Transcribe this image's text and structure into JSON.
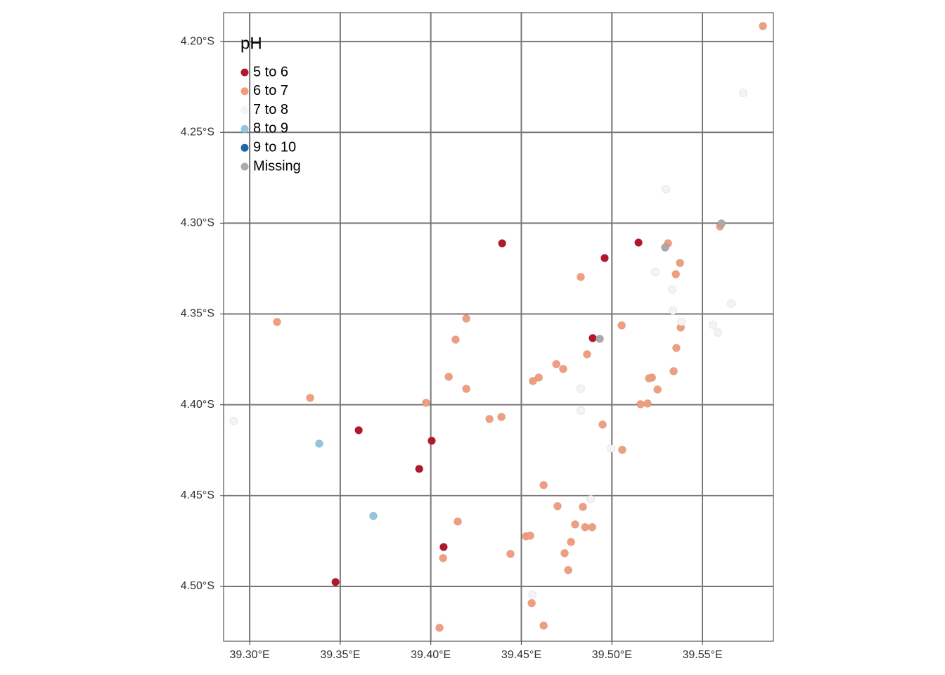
{
  "chart_data": {
    "type": "scatter",
    "legend_title": "pH",
    "grid": true,
    "legend_position": "top-left",
    "xlim": [
      39.2856,
      39.5892
    ],
    "ylim": [
      -4.5302,
      -4.1841
    ],
    "xticks": [
      {
        "value": 39.3,
        "label": "39.30°E"
      },
      {
        "value": 39.35,
        "label": "39.35°E"
      },
      {
        "value": 39.4,
        "label": "39.40°E"
      },
      {
        "value": 39.45,
        "label": "39.45°E"
      },
      {
        "value": 39.5,
        "label": "39.50°E"
      },
      {
        "value": 39.55,
        "label": "39.55°E"
      }
    ],
    "yticks": [
      {
        "value": -4.2,
        "label": "4.20°S"
      },
      {
        "value": -4.25,
        "label": "4.25°S"
      },
      {
        "value": -4.3,
        "label": "4.30°S"
      },
      {
        "value": -4.35,
        "label": "4.35°S"
      },
      {
        "value": -4.4,
        "label": "4.40°S"
      },
      {
        "value": -4.45,
        "label": "4.45°S"
      },
      {
        "value": -4.5,
        "label": "4.50°S"
      }
    ],
    "series": [
      {
        "name": "5 to 6",
        "color": "#b2182b",
        "x": [
          39.4394,
          39.496,
          39.5147,
          39.4894,
          39.3602,
          39.4005,
          39.3936,
          39.4071,
          39.3474
        ],
        "y": [
          -4.3111,
          -4.3192,
          -4.3107,
          -4.3633,
          -4.414,
          -4.4198,
          -4.4353,
          -4.4783,
          -4.4976
        ]
      },
      {
        "name": "6 to 7",
        "color": "#ef9f7e",
        "x": [
          39.5834,
          39.5597,
          39.531,
          39.5376,
          39.5353,
          39.4828,
          39.3151,
          39.5054,
          39.538,
          39.4196,
          39.4137,
          39.5356,
          39.4863,
          39.4693,
          39.4731,
          39.5341,
          39.4099,
          39.5221,
          39.5205,
          39.4596,
          39.4564,
          39.4196,
          39.5252,
          39.3334,
          39.3974,
          39.5158,
          39.5197,
          39.439,
          39.4324,
          39.4949,
          39.5057,
          39.4623,
          39.47,
          39.484,
          39.4149,
          39.4797,
          39.4852,
          39.4891,
          39.4526,
          39.4549,
          39.4774,
          39.4739,
          39.4068,
          39.444,
          39.4759,
          39.4557,
          39.4048,
          39.4623
        ],
        "y": [
          -4.1915,
          -4.3018,
          -4.3111,
          -4.3219,
          -4.3281,
          -4.3296,
          -4.3544,
          -4.3563,
          -4.3575,
          -4.3525,
          -4.3641,
          -4.3687,
          -4.3722,
          -4.3776,
          -4.3803,
          -4.3815,
          -4.3846,
          -4.385,
          -4.3854,
          -4.385,
          -4.3869,
          -4.3912,
          -4.3916,
          -4.3962,
          -4.3989,
          -4.3997,
          -4.3993,
          -4.4067,
          -4.4078,
          -4.4109,
          -4.4248,
          -4.4442,
          -4.4558,
          -4.4562,
          -4.4643,
          -4.4659,
          -4.4674,
          -4.4674,
          -4.4724,
          -4.4721,
          -4.4755,
          -4.4817,
          -4.4844,
          -4.4821,
          -4.491,
          -4.5092,
          -4.5228,
          -4.5216
        ]
      },
      {
        "name": "7 to 8",
        "color": "#f4f4f4",
        "x": [
          39.5725,
          39.5298,
          39.5659,
          39.524,
          39.5333,
          39.5337,
          39.5384,
          39.5558,
          39.5585,
          39.4828,
          39.4828,
          39.4995,
          39.2911,
          39.4883,
          39.4561
        ],
        "y": [
          -4.2283,
          -4.2813,
          -4.3443,
          -4.3269,
          -4.3366,
          -4.3482,
          -4.3544,
          -4.356,
          -4.3602,
          -4.3912,
          -4.4032,
          -4.4241,
          -4.409,
          -4.4519,
          -4.5046
        ]
      },
      {
        "name": "8 to 9",
        "color": "#92c5de",
        "x": [
          39.3384,
          39.3683
        ],
        "y": [
          -4.4214,
          -4.4612
        ]
      },
      {
        "name": "9 to 10",
        "color": "#2166ac",
        "x": [],
        "y": []
      },
      {
        "name": "Missing",
        "color": "#aaaaaa",
        "x": [
          39.5605,
          39.5294,
          39.4933
        ],
        "y": [
          -4.3002,
          -4.3134,
          -4.3637
        ]
      }
    ]
  }
}
